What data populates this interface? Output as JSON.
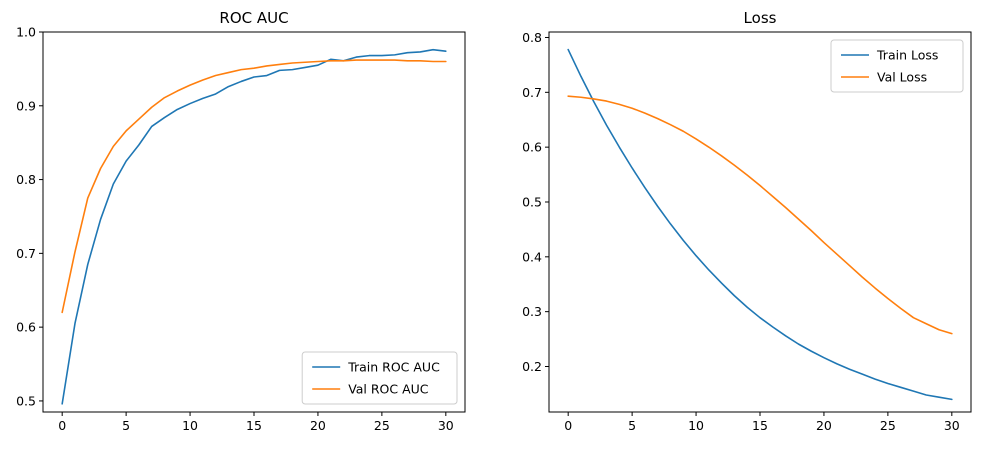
{
  "chart_data": [
    {
      "type": "line",
      "title": "ROC AUC",
      "xlabel": "",
      "ylabel": "",
      "xlim": [
        -1.5,
        31.5
      ],
      "ylim": [
        0.485,
        1.0
      ],
      "xticks": [
        0,
        5,
        10,
        15,
        20,
        25,
        30
      ],
      "yticks": [
        0.5,
        0.6,
        0.7,
        0.8,
        0.9,
        1.0
      ],
      "legend": "lower-right",
      "grid": false,
      "x": [
        0,
        1,
        2,
        3,
        4,
        5,
        6,
        7,
        8,
        9,
        10,
        11,
        12,
        13,
        14,
        15,
        16,
        17,
        18,
        19,
        20,
        21,
        22,
        23,
        24,
        25,
        26,
        27,
        28,
        29,
        30
      ],
      "series": [
        {
          "name": "Train ROC AUC",
          "color": "#1f77b4",
          "values": [
            0.496,
            0.605,
            0.685,
            0.746,
            0.794,
            0.825,
            0.847,
            0.872,
            0.884,
            0.895,
            0.903,
            0.91,
            0.916,
            0.926,
            0.933,
            0.939,
            0.941,
            0.948,
            0.949,
            0.952,
            0.955,
            0.963,
            0.961,
            0.966,
            0.968,
            0.968,
            0.969,
            0.972,
            0.973,
            0.976,
            0.974
          ]
        },
        {
          "name": "Val ROC AUC",
          "color": "#ff7f0e",
          "values": [
            0.62,
            0.702,
            0.775,
            0.815,
            0.845,
            0.866,
            0.882,
            0.898,
            0.911,
            0.92,
            0.928,
            0.935,
            0.941,
            0.945,
            0.949,
            0.951,
            0.954,
            0.956,
            0.958,
            0.959,
            0.96,
            0.961,
            0.961,
            0.962,
            0.962,
            0.962,
            0.962,
            0.961,
            0.961,
            0.96,
            0.96
          ]
        }
      ]
    },
    {
      "type": "line",
      "title": "Loss",
      "xlabel": "",
      "ylabel": "",
      "xlim": [
        -1.5,
        31.5
      ],
      "ylim": [
        0.117,
        0.81
      ],
      "xticks": [
        0,
        5,
        10,
        15,
        20,
        25,
        30
      ],
      "yticks": [
        0.2,
        0.3,
        0.4,
        0.5,
        0.6,
        0.7,
        0.8
      ],
      "legend": "top-right",
      "grid": false,
      "x": [
        0,
        1,
        2,
        3,
        4,
        5,
        6,
        7,
        8,
        9,
        10,
        11,
        12,
        13,
        14,
        15,
        16,
        17,
        18,
        19,
        20,
        21,
        22,
        23,
        24,
        25,
        26,
        27,
        28,
        29,
        30
      ],
      "series": [
        {
          "name": "Train Loss",
          "color": "#1f77b4",
          "values": [
            0.778,
            0.729,
            0.683,
            0.64,
            0.6,
            0.562,
            0.526,
            0.492,
            0.46,
            0.43,
            0.402,
            0.376,
            0.352,
            0.329,
            0.308,
            0.289,
            0.272,
            0.256,
            0.241,
            0.228,
            0.216,
            0.205,
            0.195,
            0.186,
            0.177,
            0.169,
            0.162,
            0.155,
            0.148,
            0.144,
            0.14
          ]
        },
        {
          "name": "Val Loss",
          "color": "#ff7f0e",
          "values": [
            0.693,
            0.691,
            0.688,
            0.684,
            0.678,
            0.671,
            0.662,
            0.652,
            0.641,
            0.629,
            0.615,
            0.6,
            0.584,
            0.567,
            0.549,
            0.53,
            0.51,
            0.49,
            0.469,
            0.448,
            0.426,
            0.405,
            0.384,
            0.363,
            0.343,
            0.324,
            0.306,
            0.289,
            0.278,
            0.267,
            0.26
          ]
        }
      ]
    }
  ]
}
